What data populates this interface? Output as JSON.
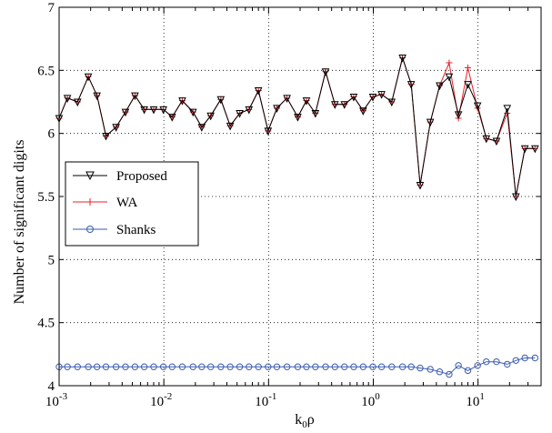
{
  "chart_data": {
    "type": "line",
    "title": "",
    "xlabel_main": "k",
    "xlabel_sub": "0",
    "xlabel_tail": "ρ",
    "ylabel": "Number of significant digits",
    "x_scale": "log",
    "xlim": [
      0.001,
      40
    ],
    "ylim": [
      4,
      7
    ],
    "grid": true,
    "legend_position": "middle-left",
    "x_ticks": [
      {
        "base": "10",
        "exp": "-3"
      },
      {
        "base": "10",
        "exp": "-2"
      },
      {
        "base": "10",
        "exp": "-1"
      },
      {
        "base": "10",
        "exp": "0"
      },
      {
        "base": "10",
        "exp": "1"
      }
    ],
    "y_ticks": [
      "4",
      "4.5",
      "5",
      "5.5",
      "6",
      "6.5",
      "7"
    ],
    "x": [
      0.001,
      0.0012,
      0.0015,
      0.0019,
      0.0023,
      0.0028,
      0.0035,
      0.0043,
      0.0053,
      0.0065,
      0.008,
      0.0099,
      0.012,
      0.015,
      0.019,
      0.023,
      0.028,
      0.035,
      0.043,
      0.053,
      0.065,
      0.08,
      0.099,
      0.12,
      0.15,
      0.19,
      0.23,
      0.28,
      0.35,
      0.43,
      0.53,
      0.65,
      0.8,
      0.99,
      1.2,
      1.5,
      1.9,
      2.3,
      2.8,
      3.5,
      4.3,
      5.3,
      6.5,
      8.0,
      9.9,
      12,
      15,
      19,
      23,
      28,
      35
    ],
    "series": [
      {
        "name": "Proposed",
        "color": "#000000",
        "marker": "triangle-down",
        "values": [
          6.12,
          6.28,
          6.25,
          6.45,
          6.3,
          5.98,
          6.05,
          6.17,
          6.3,
          6.19,
          6.19,
          6.19,
          6.13,
          6.26,
          6.17,
          6.05,
          6.14,
          6.27,
          6.06,
          6.16,
          6.19,
          6.34,
          6.02,
          6.2,
          6.28,
          6.13,
          6.26,
          6.16,
          6.49,
          6.23,
          6.23,
          6.29,
          6.18,
          6.29,
          6.31,
          6.25,
          6.6,
          6.39,
          5.59,
          6.09,
          6.38,
          6.45,
          6.15,
          6.39,
          6.22,
          5.96,
          5.94,
          6.2,
          5.5,
          5.88,
          5.88
        ]
      },
      {
        "name": "WA",
        "color": "#e8202a",
        "marker": "plus",
        "values": [
          6.12,
          6.28,
          6.25,
          6.45,
          6.3,
          5.98,
          6.05,
          6.17,
          6.3,
          6.19,
          6.19,
          6.19,
          6.13,
          6.26,
          6.17,
          6.05,
          6.14,
          6.27,
          6.06,
          6.16,
          6.19,
          6.34,
          6.02,
          6.2,
          6.28,
          6.13,
          6.26,
          6.16,
          6.49,
          6.23,
          6.23,
          6.29,
          6.18,
          6.29,
          6.31,
          6.25,
          6.6,
          6.39,
          5.59,
          6.09,
          6.38,
          6.56,
          6.12,
          6.52,
          6.2,
          5.96,
          5.94,
          6.16,
          5.5,
          5.88,
          5.88
        ]
      },
      {
        "name": "Shanks",
        "color": "#3a5bb0",
        "marker": "circle",
        "values": [
          4.15,
          4.15,
          4.15,
          4.15,
          4.15,
          4.15,
          4.15,
          4.15,
          4.15,
          4.15,
          4.15,
          4.15,
          4.15,
          4.15,
          4.15,
          4.15,
          4.15,
          4.15,
          4.15,
          4.15,
          4.15,
          4.15,
          4.15,
          4.15,
          4.15,
          4.15,
          4.15,
          4.15,
          4.15,
          4.15,
          4.15,
          4.15,
          4.15,
          4.15,
          4.15,
          4.15,
          4.15,
          4.15,
          4.14,
          4.13,
          4.11,
          4.09,
          4.16,
          4.12,
          4.16,
          4.19,
          4.19,
          4.17,
          4.2,
          4.22,
          4.22
        ]
      }
    ]
  }
}
